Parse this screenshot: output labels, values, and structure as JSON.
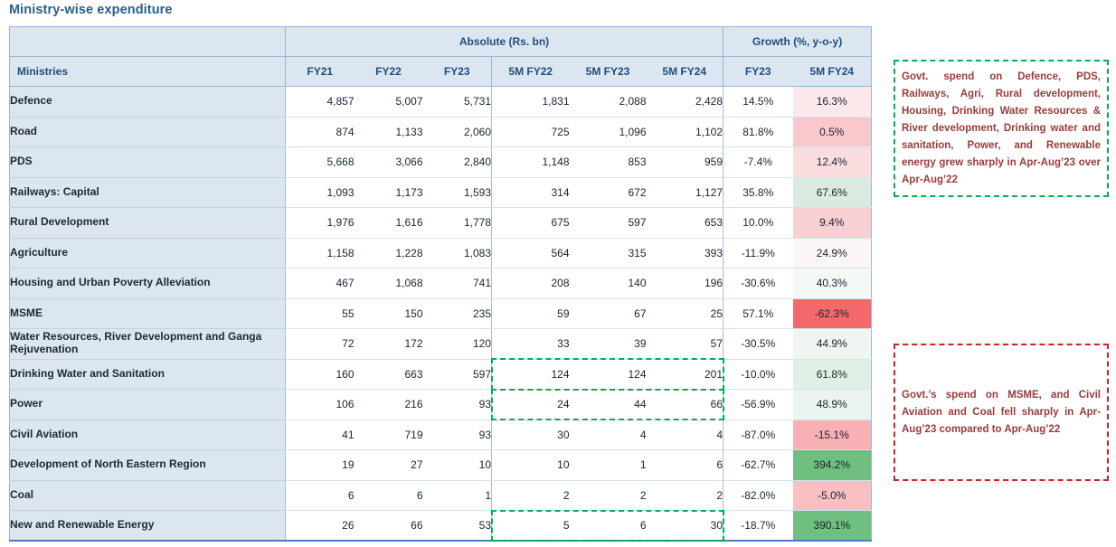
{
  "title": "Ministry-wise expenditure",
  "table": {
    "group_headers": {
      "absolute": "Absolute (Rs. bn)",
      "growth": "Growth (%, y-o-y)"
    },
    "col_headers": [
      "Ministries",
      "FY21",
      "FY22",
      "FY23",
      "5M FY22",
      "5M FY23",
      "5M FY24",
      "FY23",
      "5M FY24"
    ],
    "rows": [
      {
        "ministry": "Defence",
        "fy21": "4,857",
        "fy22": "5,007",
        "fy23": "5,731",
        "m5fy22": "1,831",
        "m5fy23": "2,088",
        "m5fy24": "2,428",
        "gfy23": "14.5%",
        "g5mfy24": "16.3%",
        "g5mfy24_bg": "#fce8ea",
        "dash_highlight": false
      },
      {
        "ministry": "Road",
        "fy21": "874",
        "fy22": "1,133",
        "fy23": "2,060",
        "m5fy22": "725",
        "m5fy23": "1,096",
        "m5fy24": "1,102",
        "gfy23": "81.8%",
        "g5mfy24": "0.5%",
        "g5mfy24_bg": "#f8c8cc",
        "dash_highlight": false
      },
      {
        "ministry": "PDS",
        "fy21": "5,668",
        "fy22": "3,066",
        "fy23": "2,840",
        "m5fy22": "1,148",
        "m5fy23": "853",
        "m5fy24": "959",
        "gfy23": "-7.4%",
        "g5mfy24": "12.4%",
        "g5mfy24_bg": "#fbdde0",
        "dash_highlight": false
      },
      {
        "ministry": "Railways: Capital",
        "fy21": "1,093",
        "fy22": "1,173",
        "fy23": "1,593",
        "m5fy22": "314",
        "m5fy23": "672",
        "m5fy24": "1,127",
        "gfy23": "35.8%",
        "g5mfy24": "67.6%",
        "g5mfy24_bg": "#dcebdf",
        "dash_highlight": false
      },
      {
        "ministry": "Rural Development",
        "fy21": "1,976",
        "fy22": "1,616",
        "fy23": "1,778",
        "m5fy22": "675",
        "m5fy23": "597",
        "m5fy24": "653",
        "gfy23": "10.0%",
        "g5mfy24": "9.4%",
        "g5mfy24_bg": "#f9d0d4",
        "dash_highlight": false
      },
      {
        "ministry": "Agriculture",
        "fy21": "1,158",
        "fy22": "1,228",
        "fy23": "1,083",
        "m5fy22": "564",
        "m5fy23": "315",
        "m5fy24": "393",
        "gfy23": "-11.9%",
        "g5mfy24": "24.9%",
        "g5mfy24_bg": "#fdf6f7",
        "dash_highlight": false
      },
      {
        "ministry": "Housing and Urban Poverty Alleviation",
        "fy21": "467",
        "fy22": "1,068",
        "fy23": "741",
        "m5fy22": "208",
        "m5fy23": "140",
        "m5fy24": "196",
        "gfy23": "-30.6%",
        "g5mfy24": "40.3%",
        "g5mfy24_bg": "#f4f9f6",
        "dash_highlight": false
      },
      {
        "ministry": "MSME",
        "fy21": "55",
        "fy22": "150",
        "fy23": "235",
        "m5fy22": "59",
        "m5fy23": "67",
        "m5fy24": "25",
        "gfy23": "57.1%",
        "g5mfy24": "-62.3%",
        "g5mfy24_bg": "#f4696b",
        "dash_highlight": false
      },
      {
        "ministry": "Water Resources, River Development and Ganga Rejuvenation",
        "fy21": "72",
        "fy22": "172",
        "fy23": "120",
        "m5fy22": "33",
        "m5fy23": "39",
        "m5fy24": "57",
        "gfy23": "-30.5%",
        "g5mfy24": "44.9%",
        "g5mfy24_bg": "#eff6f1",
        "dash_highlight": false
      },
      {
        "ministry": "Drinking Water and Sanitation",
        "fy21": "160",
        "fy22": "663",
        "fy23": "597",
        "m5fy22": "124",
        "m5fy23": "124",
        "m5fy24": "201",
        "gfy23": "-10.0%",
        "g5mfy24": "61.8%",
        "g5mfy24_bg": "#e1efe5",
        "dash_highlight": true
      },
      {
        "ministry": "Power",
        "fy21": "106",
        "fy22": "216",
        "fy23": "93",
        "m5fy22": "24",
        "m5fy23": "44",
        "m5fy24": "66",
        "gfy23": "-56.9%",
        "g5mfy24": "48.9%",
        "g5mfy24_bg": "#ebf4ee",
        "dash_highlight": true
      },
      {
        "ministry": "Civil Aviation",
        "fy21": "41",
        "fy22": "719",
        "fy23": "93",
        "m5fy22": "30",
        "m5fy23": "4",
        "m5fy24": "4",
        "gfy23": "-87.0%",
        "g5mfy24": "-15.1%",
        "g5mfy24_bg": "#f7b0b3",
        "dash_highlight": false
      },
      {
        "ministry": "Development of North Eastern Region",
        "fy21": "19",
        "fy22": "27",
        "fy23": "10",
        "m5fy22": "10",
        "m5fy23": "1",
        "m5fy24": "6",
        "gfy23": "-62.7%",
        "g5mfy24": "394.2%",
        "g5mfy24_bg": "#6fbf80",
        "dash_highlight": false
      },
      {
        "ministry": "Coal",
        "fy21": "6",
        "fy22": "6",
        "fy23": "1",
        "m5fy22": "2",
        "m5fy23": "2",
        "m5fy24": "2",
        "gfy23": "-82.0%",
        "g5mfy24": "-5.0%",
        "g5mfy24_bg": "#f9bfc2",
        "dash_highlight": false
      },
      {
        "ministry": "New and Renewable Energy",
        "fy21": "26",
        "fy22": "66",
        "fy23": "53",
        "m5fy22": "5",
        "m5fy23": "6",
        "m5fy24": "30",
        "gfy23": "-18.7%",
        "g5mfy24": "390.1%",
        "g5mfy24_bg": "#6fbf80",
        "dash_highlight": true
      }
    ]
  },
  "annotations": {
    "green_note": {
      "text": "Govt. spend on Defence, PDS, Railways, Agri, Rural development, Housing, Drinking Water Resources & River development, Drinking water and sanitation, Power, and Renewable energy grew sharply in Apr-Aug’23 over Apr-Aug’22",
      "border_color": "#00b050"
    },
    "red_note": {
      "text": "Govt.’s spend on MSME, and Civil Aviation and Coal fell sharply in Apr-Aug’23 compared to Apr-Aug’22",
      "border_color": "#cc2222"
    }
  },
  "colors": {
    "header_bg": "#dce6f1",
    "header_text": "#1f4e79",
    "title_text": "#24618e",
    "note_text": "#9a3b3b",
    "table_bottom_border": "#4a7ebb",
    "highlight_dash_green": "#00b050",
    "scale_strong_red": "#f4696b",
    "scale_strong_green": "#6fbf80"
  }
}
